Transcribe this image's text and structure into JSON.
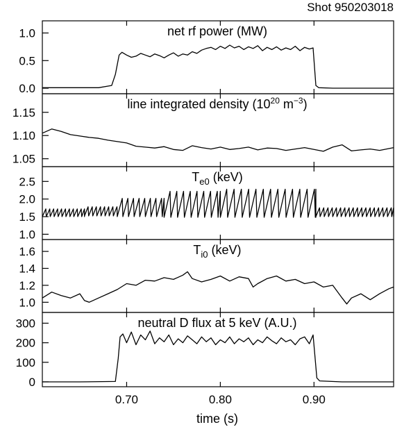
{
  "shot_label": "Shot 950203018",
  "colors": {
    "trace": "#000000",
    "axis": "#000000",
    "background": "#ffffff"
  },
  "chart_data": {
    "type": "line",
    "xlabel": "time (s)",
    "xlim": [
      0.61,
      0.985
    ],
    "xticks": [
      0.7,
      0.8,
      0.9
    ],
    "xtick_labels": [
      "0.70",
      "0.80",
      "0.90"
    ],
    "panels": [
      {
        "id": "rf",
        "title": "net rf power (MW)",
        "ylim": [
          -0.1,
          1.22
        ],
        "yticks": [
          0.0,
          0.5,
          1.0
        ],
        "ytick_labels": [
          "0.0",
          "0.5",
          "1.0"
        ],
        "series": [
          {
            "x": [
              0.61,
              0.64,
              0.67,
              0.684,
              0.688,
              0.692,
              0.695,
              0.7,
              0.705,
              0.71,
              0.715,
              0.72,
              0.725,
              0.73,
              0.735,
              0.74,
              0.745,
              0.75,
              0.755,
              0.76,
              0.765,
              0.77,
              0.775,
              0.78,
              0.785,
              0.79,
              0.795,
              0.8,
              0.805,
              0.81,
              0.815,
              0.82,
              0.825,
              0.83,
              0.835,
              0.84,
              0.845,
              0.85,
              0.855,
              0.86,
              0.865,
              0.87,
              0.875,
              0.88,
              0.885,
              0.89,
              0.895,
              0.899,
              0.902,
              0.905,
              0.92,
              0.985
            ],
            "y": [
              0.01,
              0.01,
              0.01,
              0.05,
              0.25,
              0.6,
              0.65,
              0.6,
              0.56,
              0.58,
              0.63,
              0.6,
              0.57,
              0.62,
              0.59,
              0.55,
              0.6,
              0.64,
              0.58,
              0.62,
              0.6,
              0.66,
              0.63,
              0.69,
              0.72,
              0.74,
              0.7,
              0.76,
              0.72,
              0.78,
              0.73,
              0.76,
              0.7,
              0.75,
              0.72,
              0.77,
              0.68,
              0.74,
              0.7,
              0.75,
              0.69,
              0.73,
              0.7,
              0.76,
              0.68,
              0.74,
              0.71,
              0.73,
              0.05,
              0.01,
              0.0,
              0.0
            ]
          }
        ]
      },
      {
        "id": "density",
        "title": "line integrated density (10",
        "title_sup": "20",
        "title_unit": " m",
        "title_sup2": "−3",
        "title_end": ")",
        "ylim": [
          1.033,
          1.19
        ],
        "yticks": [
          1.05,
          1.1,
          1.15
        ],
        "ytick_labels": [
          "1.05",
          "1.10",
          "1.15"
        ],
        "series": [
          {
            "x": [
              0.61,
              0.62,
              0.63,
              0.64,
              0.65,
              0.66,
              0.67,
              0.68,
              0.69,
              0.7,
              0.71,
              0.72,
              0.73,
              0.74,
              0.75,
              0.76,
              0.77,
              0.78,
              0.79,
              0.8,
              0.81,
              0.82,
              0.83,
              0.84,
              0.85,
              0.86,
              0.87,
              0.88,
              0.89,
              0.9,
              0.91,
              0.92,
              0.93,
              0.94,
              0.95,
              0.96,
              0.97,
              0.985
            ],
            "y": [
              1.105,
              1.114,
              1.109,
              1.102,
              1.099,
              1.096,
              1.094,
              1.09,
              1.087,
              1.084,
              1.077,
              1.075,
              1.073,
              1.076,
              1.07,
              1.068,
              1.078,
              1.074,
              1.071,
              1.075,
              1.07,
              1.072,
              1.075,
              1.069,
              1.073,
              1.072,
              1.068,
              1.071,
              1.074,
              1.07,
              1.066,
              1.075,
              1.08,
              1.067,
              1.069,
              1.071,
              1.068,
              1.074
            ]
          }
        ]
      },
      {
        "id": "te0",
        "title": "T",
        "title_sub": "e0",
        "title_unit": " (keV)",
        "ylim": [
          0.85,
          2.92
        ],
        "yticks": [
          1.0,
          1.5,
          2.0,
          2.5
        ],
        "ytick_labels": [
          "1.0",
          "1.5",
          "2.0",
          "2.5"
        ],
        "sawtooth": {
          "segments": [
            {
              "start": 0.61,
              "end": 0.655,
              "period": 0.0042,
              "low": 1.5,
              "high": 1.72
            },
            {
              "start": 0.655,
              "end": 0.69,
              "period": 0.0044,
              "low": 1.52,
              "high": 1.78
            },
            {
              "start": 0.69,
              "end": 0.74,
              "period": 0.006,
              "low": 1.5,
              "high": 2.02
            },
            {
              "start": 0.74,
              "end": 0.8,
              "period": 0.0072,
              "low": 1.48,
              "high": 2.22
            },
            {
              "start": 0.8,
              "end": 0.902,
              "period": 0.0078,
              "low": 1.48,
              "high": 2.28
            },
            {
              "start": 0.902,
              "end": 0.985,
              "period": 0.0045,
              "low": 1.5,
              "high": 1.75
            }
          ]
        }
      },
      {
        "id": "ti0",
        "title": "T",
        "title_sub": "i0",
        "title_unit": " (keV)",
        "ylim": [
          0.88,
          1.74
        ],
        "yticks": [
          1.0,
          1.2,
          1.4,
          1.6
        ],
        "ytick_labels": [
          "1.0",
          "1.2",
          "1.4",
          "1.6"
        ],
        "series": [
          {
            "x": [
              0.61,
              0.62,
              0.63,
              0.64,
              0.65,
              0.655,
              0.66,
              0.67,
              0.68,
              0.69,
              0.7,
              0.71,
              0.72,
              0.73,
              0.74,
              0.75,
              0.76,
              0.765,
              0.77,
              0.78,
              0.79,
              0.8,
              0.81,
              0.82,
              0.83,
              0.835,
              0.84,
              0.85,
              0.86,
              0.87,
              0.88,
              0.89,
              0.9,
              0.91,
              0.92,
              0.93,
              0.935,
              0.94,
              0.95,
              0.96,
              0.97,
              0.98,
              0.985
            ],
            "y": [
              1.05,
              1.12,
              1.08,
              1.05,
              1.1,
              1.02,
              1.0,
              1.05,
              1.1,
              1.15,
              1.22,
              1.2,
              1.26,
              1.25,
              1.29,
              1.27,
              1.32,
              1.36,
              1.28,
              1.24,
              1.27,
              1.31,
              1.25,
              1.3,
              1.28,
              1.18,
              1.22,
              1.28,
              1.31,
              1.25,
              1.27,
              1.22,
              1.24,
              1.18,
              1.2,
              1.05,
              0.98,
              1.05,
              1.1,
              1.03,
              1.1,
              1.16,
              1.18
            ]
          }
        ]
      },
      {
        "id": "dflux",
        "title": "neutral D flux at 5 keV (A.U.)",
        "ylim": [
          -25,
          355
        ],
        "yticks": [
          0,
          100,
          200,
          300
        ],
        "ytick_labels": [
          "0",
          "100",
          "200",
          "300"
        ],
        "series": [
          {
            "x": [
              0.61,
              0.65,
              0.688,
              0.691,
              0.693,
              0.696,
              0.7,
              0.705,
              0.71,
              0.715,
              0.72,
              0.725,
              0.73,
              0.735,
              0.74,
              0.745,
              0.75,
              0.755,
              0.76,
              0.765,
              0.77,
              0.775,
              0.78,
              0.785,
              0.79,
              0.795,
              0.8,
              0.805,
              0.81,
              0.815,
              0.82,
              0.825,
              0.83,
              0.835,
              0.84,
              0.845,
              0.85,
              0.855,
              0.86,
              0.865,
              0.87,
              0.875,
              0.88,
              0.885,
              0.89,
              0.895,
              0.899,
              0.903,
              0.906,
              0.93,
              0.985
            ],
            "y": [
              0,
              0,
              2,
              120,
              230,
              245,
              200,
              255,
              190,
              240,
              215,
              260,
              195,
              225,
              205,
              240,
              190,
              220,
              200,
              235,
              215,
              195,
              230,
              205,
              225,
              190,
              215,
              200,
              230,
              195,
              220,
              205,
              225,
              190,
              215,
              200,
              230,
              210,
              195,
              225,
              205,
              215,
              190,
              220,
              230,
              195,
              240,
              20,
              5,
              0,
              0
            ]
          }
        ]
      }
    ]
  }
}
